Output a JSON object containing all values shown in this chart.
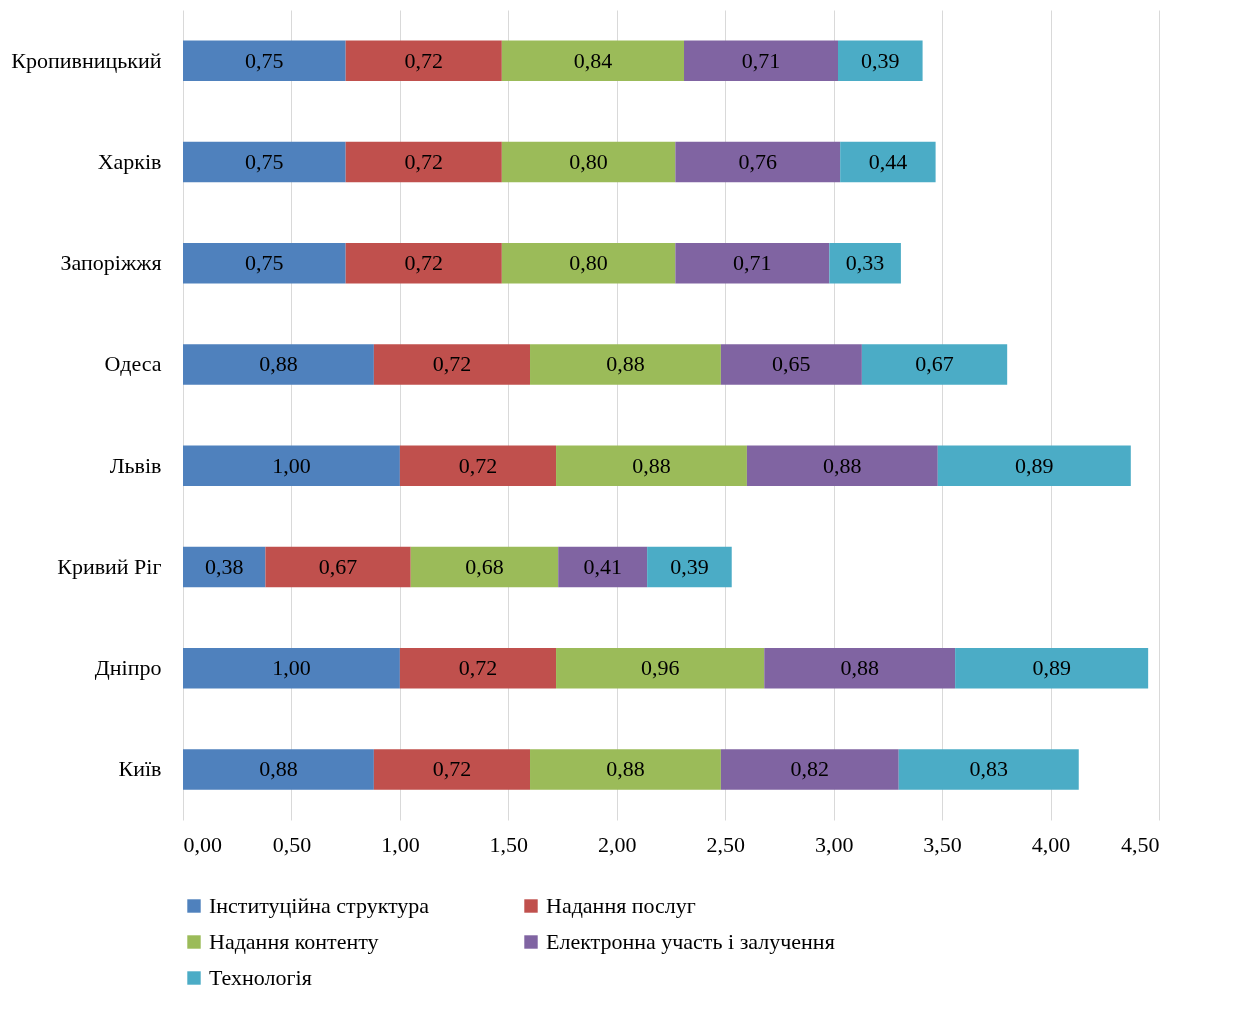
{
  "chart_data": {
    "type": "bar",
    "orientation": "horizontal",
    "stacked": true,
    "categories": [
      "Кропивницький",
      "Харків",
      "Запоріжжя",
      "Одеса",
      "Львів",
      "Кривий Ріг",
      "Дніпро",
      "Київ"
    ],
    "series": [
      {
        "name": "Інституційна структура",
        "color": "#4f81bd",
        "values": [
          0.75,
          0.75,
          0.75,
          0.88,
          1.0,
          0.38,
          1.0,
          0.88
        ],
        "value_labels": [
          "0,75",
          "0,75",
          "0,75",
          "0,88",
          "1,00",
          "0,38",
          "1,00",
          "0,88"
        ]
      },
      {
        "name": "Надання послуг",
        "color": "#c0504d",
        "values": [
          0.72,
          0.72,
          0.72,
          0.72,
          0.72,
          0.67,
          0.72,
          0.72
        ],
        "value_labels": [
          "0,72",
          "0,72",
          "0,72",
          "0,72",
          "0,72",
          "0,67",
          "0,72",
          "0,72"
        ]
      },
      {
        "name": "Надання контенту",
        "color": "#9bbb59",
        "values": [
          0.84,
          0.8,
          0.8,
          0.88,
          0.88,
          0.68,
          0.96,
          0.88
        ],
        "value_labels": [
          "0,84",
          "0,80",
          "0,80",
          "0,88",
          "0,88",
          "0,68",
          "0,96",
          "0,88"
        ]
      },
      {
        "name": "Електронна участь і залучення",
        "color": "#8064a2",
        "values": [
          0.71,
          0.76,
          0.71,
          0.65,
          0.88,
          0.41,
          0.88,
          0.82
        ],
        "value_labels": [
          "0,71",
          "0,76",
          "0,71",
          "0,65",
          "0,88",
          "0,41",
          "0,88",
          "0,82"
        ]
      },
      {
        "name": "Технологія",
        "color": "#4bacc6",
        "values": [
          0.39,
          0.44,
          0.33,
          0.67,
          0.89,
          0.39,
          0.89,
          0.83
        ],
        "value_labels": [
          "0,39",
          "0,44",
          "0,33",
          "0,67",
          "0,89",
          "0,39",
          "0,89",
          "0,83"
        ]
      }
    ],
    "xlim": [
      0,
      4.5
    ],
    "xticks": [
      {
        "value": 0,
        "label": "0,00"
      },
      {
        "value": 0.5,
        "label": "0,50"
      },
      {
        "value": 1,
        "label": "1,00"
      },
      {
        "value": 1.5,
        "label": "1,50"
      },
      {
        "value": 2,
        "label": "2,00"
      },
      {
        "value": 2.5,
        "label": "2,50"
      },
      {
        "value": 3,
        "label": "3,00"
      },
      {
        "value": 3.5,
        "label": "3,50"
      },
      {
        "value": 4,
        "label": "4,00"
      },
      {
        "value": 4.5,
        "label": "4,50"
      }
    ],
    "grid": "x",
    "legend": "bottom"
  }
}
